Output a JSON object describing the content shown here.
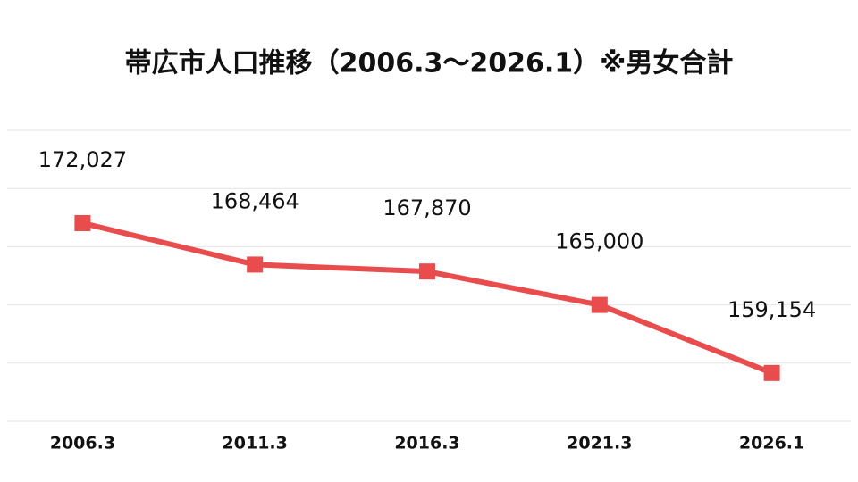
{
  "chart_data": {
    "type": "line",
    "title": "帯広市人口推移（2006.3～2026.1）※男女合計",
    "categories": [
      "2006.3",
      "2011.3",
      "2016.3",
      "2021.3",
      "2026.1"
    ],
    "values": [
      172027,
      168464,
      167870,
      165000,
      159154
    ],
    "value_labels": [
      "172,027",
      "168,464",
      "167,870",
      "165,000",
      "159,154"
    ],
    "color": "#e84c4c",
    "ylim": [
      155000,
      180000
    ],
    "yticks": [
      155000,
      160000,
      165000,
      170000,
      175000,
      180000
    ],
    "grid": true
  }
}
